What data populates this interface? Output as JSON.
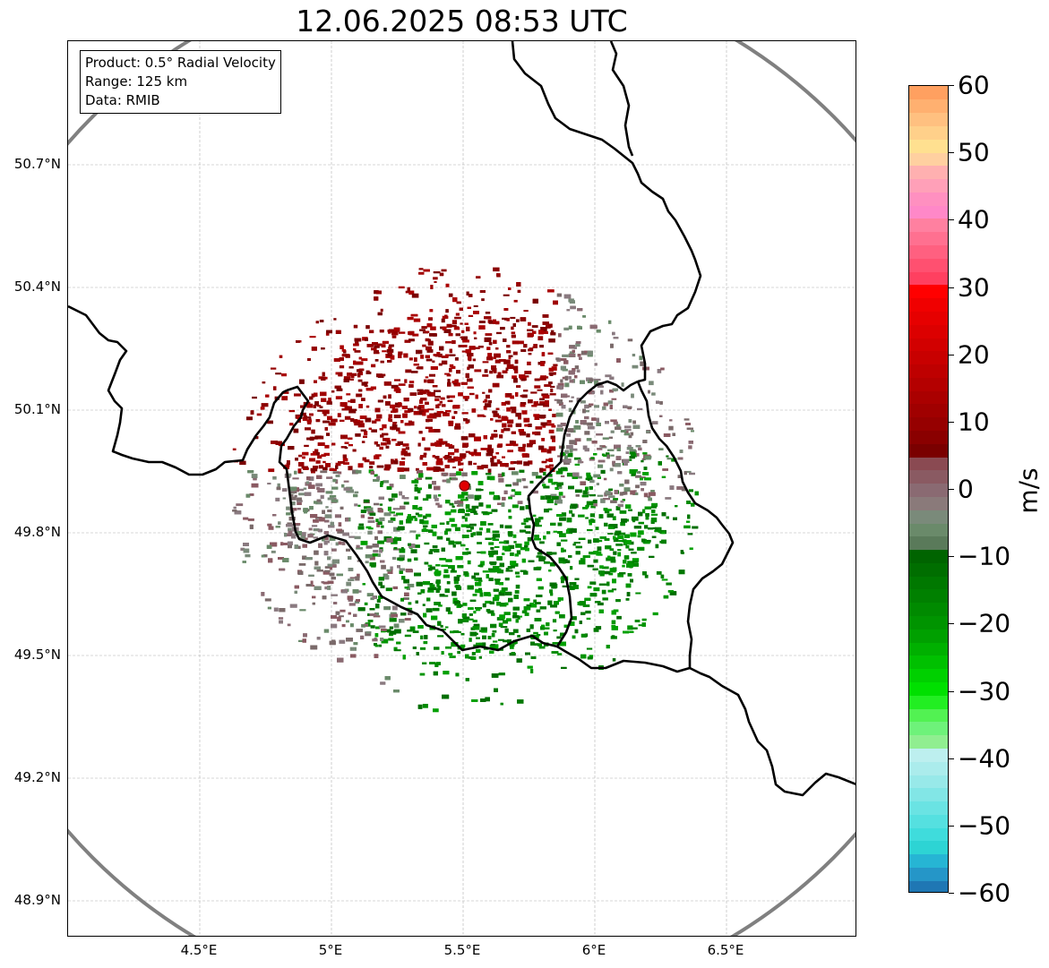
{
  "title": "12.06.2025 08:53 UTC",
  "info_box": {
    "product": "Product: 0.5° Radial Velocity",
    "range": "Range: 125 km",
    "data_source": "Data: RMIB"
  },
  "map": {
    "lon_range": [
      4.0,
      7.0
    ],
    "lat_range": [
      48.8,
      51.0
    ],
    "radar_site": {
      "lon": 5.505,
      "lat": 49.915,
      "color": "#e00000"
    },
    "range_ring_color": "#808080",
    "border_color": "#000000",
    "gridlines": true,
    "lat_ticks": [
      {
        "value": 50.7,
        "label": "50.7°N"
      },
      {
        "value": 50.4,
        "label": "50.4°N"
      },
      {
        "value": 50.1,
        "label": "50.1°N"
      },
      {
        "value": 49.8,
        "label": "49.8°N"
      },
      {
        "value": 49.5,
        "label": "49.5°N"
      },
      {
        "value": 49.2,
        "label": "49.2°N"
      },
      {
        "value": 48.9,
        "label": "48.9°N"
      }
    ],
    "lon_ticks": [
      {
        "value": 4.5,
        "label": "4.5°E"
      },
      {
        "value": 5.0,
        "label": "5°E"
      },
      {
        "value": 5.5,
        "label": "5.5°E"
      },
      {
        "value": 6.0,
        "label": "6°E"
      },
      {
        "value": 6.5,
        "label": "6.5°E"
      }
    ]
  },
  "colorbar": {
    "unit": "m/s",
    "range": [
      -60,
      60
    ],
    "tick_labels": [
      {
        "value": 60,
        "label": "60"
      },
      {
        "value": 50,
        "label": "50"
      },
      {
        "value": 40,
        "label": "40"
      },
      {
        "value": 30,
        "label": "30"
      },
      {
        "value": 20,
        "label": "20"
      },
      {
        "value": 10,
        "label": "10"
      },
      {
        "value": 0,
        "label": "0"
      },
      {
        "value": -10,
        "label": "−10"
      },
      {
        "value": -20,
        "label": "−20"
      },
      {
        "value": -30,
        "label": "−30"
      },
      {
        "value": -40,
        "label": "−40"
      },
      {
        "value": -50,
        "label": "−50"
      },
      {
        "value": -60,
        "label": "−60"
      }
    ],
    "colors": [
      "#1f77b4",
      "#2596c8",
      "#26b5d4",
      "#2dd4d4",
      "#3fdcdc",
      "#55e0e0",
      "#6ae3e3",
      "#82e6e6",
      "#98e9e9",
      "#abecec",
      "#bdefef",
      "#90ee90",
      "#6ef27a",
      "#52f252",
      "#22ee22",
      "#00e000",
      "#00d000",
      "#00c000",
      "#00b000",
      "#00a000",
      "#009400",
      "#008a00",
      "#008000",
      "#007800",
      "#006e00",
      "#006400",
      "#5a7a5a",
      "#6a8a6a",
      "#7a8a7a",
      "#8a7a7a",
      "#8a6a72",
      "#8a5a62",
      "#8a4a52",
      "#7a0000",
      "#8a0000",
      "#960000",
      "#a00000",
      "#aa0000",
      "#b40000",
      "#be0000",
      "#c80000",
      "#d20000",
      "#dc0000",
      "#e60000",
      "#f00000",
      "#ff0000",
      "#ff4060",
      "#ff5070",
      "#ff6080",
      "#ff7090",
      "#ff80a0",
      "#ff88c8",
      "#ff90c0",
      "#ffa0b8",
      "#ffb0b0",
      "#ffd0a0",
      "#ffe090",
      "#ffd08a",
      "#ffc080",
      "#ffb070",
      "#ffa060"
    ]
  }
}
